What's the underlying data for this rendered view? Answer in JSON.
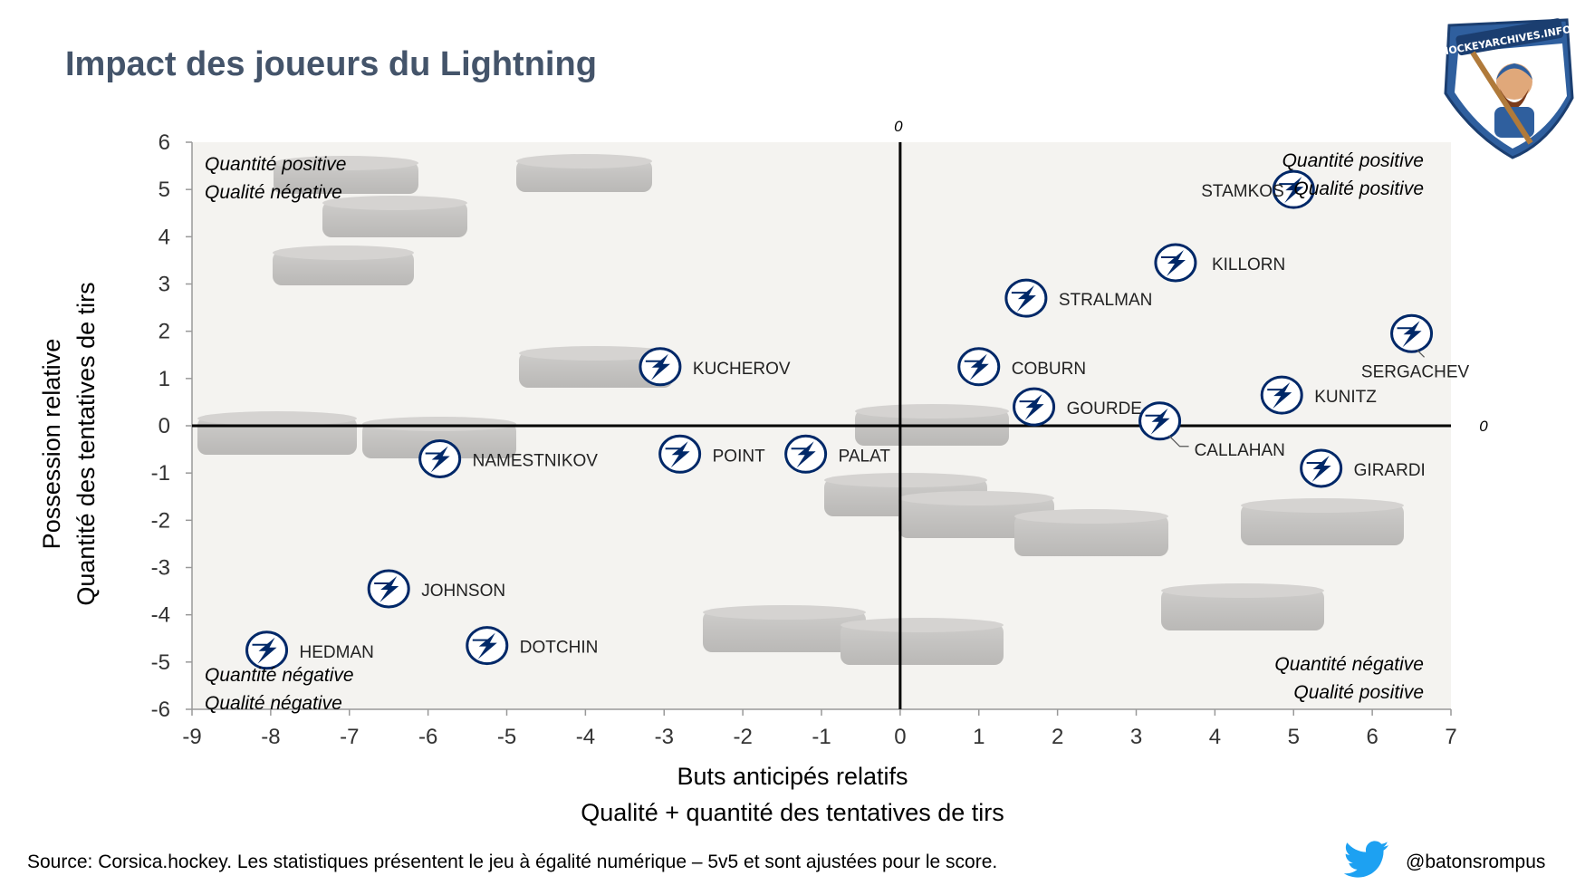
{
  "title": "Impact des joueurs du Lightning",
  "source": "Source: Corsica.hockey. Les statistiques présentent le jeu à égalité numérique – 5v5 et sont ajustées pour le score.",
  "twitter_handle": "@batonsrompus",
  "logo_text": "HOCKEYARCHIVES.INFO",
  "colors": {
    "title": "#44546a",
    "marker": "#002868",
    "plot_bg": "#f4f3f0",
    "axis": "#000000",
    "twitter": "#1da1f2"
  },
  "quadrants": {
    "top_left": [
      "Quantité positive",
      "Qualité négative"
    ],
    "top_right": [
      "Quantité positive",
      "Qualité positive"
    ],
    "bottom_left": [
      "Quantité négative",
      "Qualité négative"
    ],
    "bottom_right": [
      "Quantité négative",
      "Qualité positive"
    ]
  },
  "chart_data": {
    "type": "scatter",
    "title": "Impact des joueurs du Lightning",
    "xlabel": [
      "Buts anticipés relatifs",
      "Qualité + quantité des tentatives de tirs"
    ],
    "ylabel": [
      "Possession relative",
      "Quantité des tentatives de tirs"
    ],
    "xlim": [
      -9,
      7
    ],
    "ylim": [
      -6,
      6
    ],
    "xticks": [
      "-9",
      "-8",
      "-7",
      "-6",
      "-5",
      "-4",
      "-3",
      "-2",
      "-1",
      "0",
      "1",
      "2",
      "3",
      "4",
      "5",
      "6",
      "7"
    ],
    "yticks": [
      "6",
      "5",
      "4",
      "3",
      "2",
      "1",
      "0",
      "-1",
      "-2",
      "-3",
      "-4",
      "-5",
      "-6"
    ],
    "axis_zero_labels": {
      "x_axis_end": "0",
      "y_axis_top": "0"
    },
    "marker": "lightning-logo",
    "grid": false,
    "points": [
      {
        "label": "STAMKOS",
        "x": 5.0,
        "y": 5.0
      },
      {
        "label": "KILLORN",
        "x": 3.5,
        "y": 3.45
      },
      {
        "label": "STRALMAN",
        "x": 1.6,
        "y": 2.7
      },
      {
        "label": "SERGACHEV",
        "x": 6.5,
        "y": 1.95
      },
      {
        "label": "COBURN",
        "x": 1.0,
        "y": 1.25
      },
      {
        "label": "KUCHEROV",
        "x": -3.05,
        "y": 1.25
      },
      {
        "label": "KUNITZ",
        "x": 4.85,
        "y": 0.65
      },
      {
        "label": "GOURDE",
        "x": 1.7,
        "y": 0.4
      },
      {
        "label": "CALLAHAN",
        "x": 3.3,
        "y": 0.1
      },
      {
        "label": "NAMESTNIKOV",
        "x": -5.85,
        "y": -0.7
      },
      {
        "label": "POINT",
        "x": -2.8,
        "y": -0.6
      },
      {
        "label": "PALAT",
        "x": -1.2,
        "y": -0.6
      },
      {
        "label": "GIRARDI",
        "x": 5.35,
        "y": -0.9
      },
      {
        "label": "JOHNSON",
        "x": -6.5,
        "y": -3.45
      },
      {
        "label": "DOTCHIN",
        "x": -5.25,
        "y": -4.65
      },
      {
        "label": "HEDMAN",
        "x": -8.05,
        "y": -4.75
      }
    ]
  }
}
